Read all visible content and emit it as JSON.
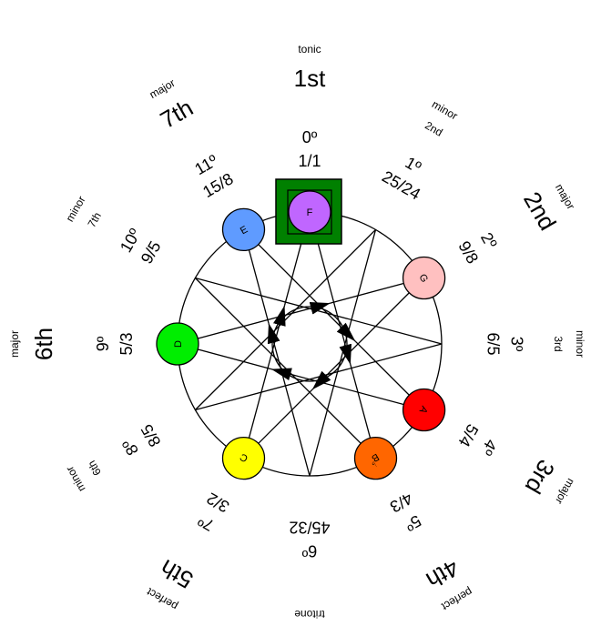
{
  "degrees": [
    {
      "quality": "tonic",
      "ordinal": "1st",
      "step": "0º",
      "ratio": "1/1"
    },
    {
      "quality": "minor",
      "quality2": "2nd",
      "ordinal": "",
      "step": "1º",
      "ratio": "25/24"
    },
    {
      "quality": "major",
      "ordinal": "2nd",
      "step": "2º",
      "ratio": "9/8"
    },
    {
      "quality": "minor",
      "quality2": "3rd",
      "ordinal": "",
      "step": "3º",
      "ratio": "6/5"
    },
    {
      "quality": "major",
      "ordinal": "3rd",
      "step": "4º",
      "ratio": "5/4"
    },
    {
      "quality": "perfect",
      "ordinal": "4th",
      "step": "5º",
      "ratio": "4/3"
    },
    {
      "quality": "tritone",
      "ordinal": "",
      "step": "6º",
      "ratio": "45/32"
    },
    {
      "quality": "perfect",
      "ordinal": "5th",
      "step": "7º",
      "ratio": "3/2"
    },
    {
      "quality": "minor",
      "quality2": "6th",
      "ordinal": "",
      "step": "8º",
      "ratio": "8/5"
    },
    {
      "quality": "major",
      "ordinal": "6th",
      "step": "9º",
      "ratio": "5/3"
    },
    {
      "quality": "minor",
      "quality2": "7th",
      "ordinal": "",
      "step": "10º",
      "ratio": "9/5"
    },
    {
      "quality": "major",
      "ordinal": "7th",
      "step": "11º",
      "ratio": "15/8"
    }
  ],
  "notes": [
    {
      "label": "F",
      "step": 0,
      "color": "#c066ff",
      "tonic": true
    },
    {
      "label": "G",
      "step": 2,
      "color": "#ffc0c0"
    },
    {
      "label": "A",
      "step": 4,
      "color": "#ff0000"
    },
    {
      "label": "B",
      "step": 5,
      "color": "#ff6600",
      "flat": true
    },
    {
      "label": "C",
      "step": 7,
      "color": "#ffff00"
    },
    {
      "label": "D",
      "step": 9,
      "color": "#00ee00"
    },
    {
      "label": "E",
      "step": 11,
      "color": "#5f9bff"
    }
  ],
  "colors": {
    "tonic_box": "#008000",
    "ring": "#000000"
  }
}
